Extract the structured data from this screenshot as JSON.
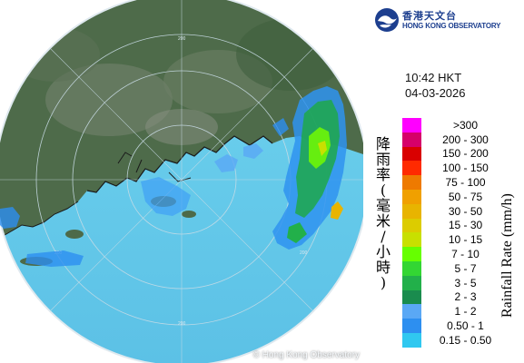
{
  "map": {
    "range_rings": [
      "200",
      "200",
      "200",
      "200"
    ],
    "copyright": "© Hong Kong Observatory"
  },
  "header": {
    "org_name_chinese": "香港天文台",
    "org_name_english": "HONG KONG OBSERVATORY"
  },
  "timestamp": {
    "time": "10:42 HKT",
    "date": "04-03-2026"
  },
  "legend": {
    "title_chinese": "降雨率(毫米/小時)",
    "title_english": "Rainfall Rate (mm/h)",
    "scale": [
      {
        "label": ">300",
        "color": "#ff00ff"
      },
      {
        "label": "200 - 300",
        "color": "#d6006a"
      },
      {
        "label": "150 - 200",
        "color": "#d90000"
      },
      {
        "label": "100 - 150",
        "color": "#ff2a00"
      },
      {
        "label": "75 - 100",
        "color": "#ee7a00"
      },
      {
        "label": "50 - 75",
        "color": "#f0a000"
      },
      {
        "label": "30 - 50",
        "color": "#e8b400"
      },
      {
        "label": "15 - 30",
        "color": "#dccc00"
      },
      {
        "label": "10 - 15",
        "color": "#c8e000"
      },
      {
        "label": "7 - 10",
        "color": "#66ff00"
      },
      {
        "label": "5 - 7",
        "color": "#33d633"
      },
      {
        "label": "3 - 5",
        "color": "#22b04a"
      },
      {
        "label": "2 - 3",
        "color": "#1a8c4e"
      },
      {
        "label": "1 - 2",
        "color": "#5aa8f5"
      },
      {
        "label": "0.50 - 1",
        "color": "#2d8ff0"
      },
      {
        "label": "0.15 - 0.50",
        "color": "#30c8f0"
      }
    ]
  }
}
